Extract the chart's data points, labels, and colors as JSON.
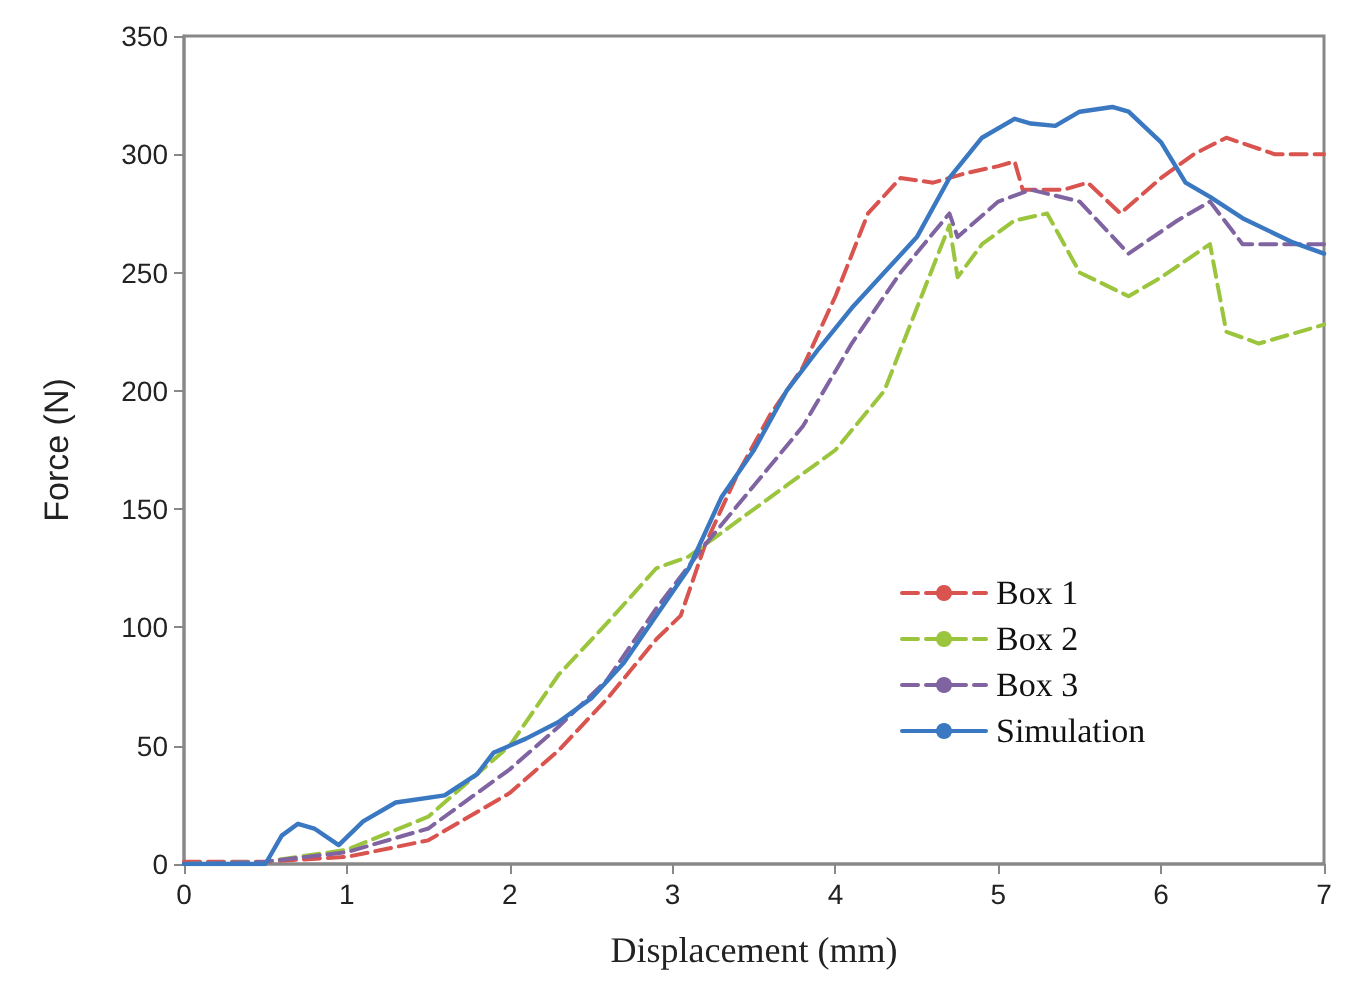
{
  "chart_data": {
    "type": "line",
    "xlabel": "Displacement (mm)",
    "ylabel": "Force (N)",
    "xlim": [
      0,
      7
    ],
    "xticks": [
      0,
      1,
      2,
      3,
      4,
      5,
      6,
      7
    ],
    "ylim": [
      0,
      350
    ],
    "yticks": [
      0,
      50,
      100,
      150,
      200,
      250,
      300,
      350
    ],
    "grid": false,
    "legend": "right",
    "marker": "none",
    "series": [
      {
        "name": "Box 1",
        "color": "#d9534f",
        "line_style": "dashed",
        "x": [
          0,
          0.5,
          1,
          1.5,
          2,
          2.3,
          2.6,
          2.9,
          3.05,
          3.2,
          3.4,
          3.6,
          3.8,
          4.0,
          4.2,
          4.4,
          4.6,
          4.8,
          5.0,
          5.1,
          5.15,
          5.4,
          5.55,
          5.75,
          6.0,
          6.2,
          6.4,
          6.7,
          7
        ],
        "values": [
          1,
          1,
          3,
          10,
          30,
          48,
          70,
          95,
          105,
          135,
          165,
          190,
          210,
          240,
          275,
          290,
          288,
          292,
          295,
          297,
          285,
          285,
          288,
          275,
          290,
          300,
          307,
          300,
          300
        ]
      },
      {
        "name": "Box 2",
        "color": "#9bc53d",
        "line_style": "dashed",
        "x": [
          0,
          0.5,
          1,
          1.5,
          2,
          2.3,
          2.6,
          2.9,
          3.1,
          3.4,
          3.7,
          4.0,
          4.3,
          4.5,
          4.7,
          4.75,
          4.9,
          5.1,
          5.3,
          5.5,
          5.8,
          6.0,
          6.3,
          6.4,
          6.6,
          7
        ],
        "values": [
          0,
          1,
          6,
          20,
          50,
          80,
          102,
          125,
          130,
          145,
          160,
          175,
          200,
          235,
          270,
          248,
          262,
          272,
          275,
          250,
          240,
          248,
          262,
          225,
          220,
          228
        ]
      },
      {
        "name": "Box 3",
        "color": "#8064a2",
        "line_style": "dashed",
        "x": [
          0,
          0.5,
          1,
          1.5,
          2,
          2.3,
          2.6,
          2.9,
          3.2,
          3.5,
          3.8,
          4.1,
          4.4,
          4.7,
          4.75,
          5.0,
          5.2,
          5.5,
          5.8,
          6.1,
          6.3,
          6.5,
          7
        ],
        "values": [
          0,
          1,
          5,
          15,
          40,
          58,
          78,
          108,
          135,
          160,
          185,
          220,
          250,
          275,
          265,
          280,
          285,
          280,
          258,
          272,
          280,
          262,
          262
        ]
      },
      {
        "name": "Simulation",
        "color": "#3a78c2",
        "line_style": "solid",
        "x": [
          0,
          0.5,
          0.6,
          0.7,
          0.8,
          0.95,
          1.1,
          1.3,
          1.6,
          1.8,
          1.9,
          2.1,
          2.3,
          2.5,
          2.7,
          2.9,
          3.1,
          3.3,
          3.5,
          3.7,
          3.9,
          4.1,
          4.3,
          4.5,
          4.7,
          4.9,
          5.1,
          5.2,
          5.35,
          5.5,
          5.7,
          5.8,
          6.0,
          6.15,
          6.3,
          6.5,
          6.8,
          7
        ],
        "values": [
          0,
          0,
          12,
          17,
          15,
          8,
          18,
          26,
          29,
          38,
          47,
          53,
          60,
          70,
          85,
          105,
          125,
          155,
          175,
          200,
          218,
          235,
          250,
          265,
          290,
          307,
          315,
          313,
          312,
          318,
          320,
          318,
          305,
          288,
          282,
          273,
          263,
          258
        ]
      }
    ]
  }
}
